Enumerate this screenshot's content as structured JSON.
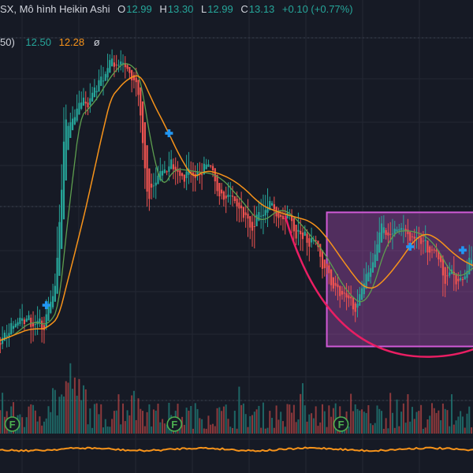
{
  "header": {
    "symbol_suffix": "SX, Mô hình Heikin Ashi",
    "open_key": "O",
    "open": "12.99",
    "high_key": "H",
    "high": "13.30",
    "low_key": "L",
    "low": "12.99",
    "close_key": "C",
    "close": "13.13",
    "change": "+0.10 (+0.77%)"
  },
  "ma_legend": {
    "params_suffix": "50)",
    "ma_fast": "12.50",
    "ma_slow": "12.28",
    "visibility_glyph": "ø"
  },
  "event_marker_label": "F",
  "colors": {
    "background": "#161a25",
    "up": "#26a69a",
    "down": "#ef5350",
    "ma_fast": "#5d9e4f",
    "ma_slow": "#f7931a",
    "pattern_box": "#d05ad6",
    "cup_curve": "#e91e63",
    "cross_marker": "#2196f3",
    "oscillator": "#f7931a"
  },
  "chart_data": {
    "type": "candlestick",
    "style": "Heikin Ashi",
    "grid": true,
    "price_range": [
      11.4,
      16.1
    ],
    "candle_count": 220,
    "key_points": [
      {
        "bar": 0,
        "price": 11.8
      },
      {
        "bar": 14,
        "price": 12.15
      },
      {
        "bar": 22,
        "price": 12.0
      },
      {
        "bar": 28,
        "price": 12.6
      },
      {
        "bar": 32,
        "price": 15.0
      },
      {
        "bar": 42,
        "price": 15.3
      },
      {
        "bar": 50,
        "price": 15.75
      },
      {
        "bar": 58,
        "price": 15.95
      },
      {
        "bar": 65,
        "price": 15.5
      },
      {
        "bar": 70,
        "price": 13.8
      },
      {
        "bar": 76,
        "price": 14.35
      },
      {
        "bar": 86,
        "price": 14.3
      },
      {
        "bar": 98,
        "price": 14.25
      },
      {
        "bar": 108,
        "price": 13.9
      },
      {
        "bar": 118,
        "price": 13.5
      },
      {
        "bar": 126,
        "price": 13.8
      },
      {
        "bar": 134,
        "price": 13.6
      },
      {
        "bar": 148,
        "price": 13.05
      },
      {
        "bar": 156,
        "price": 12.55
      },
      {
        "bar": 166,
        "price": 12.3
      },
      {
        "bar": 176,
        "price": 13.4
      },
      {
        "bar": 186,
        "price": 13.45
      },
      {
        "bar": 196,
        "price": 13.3
      },
      {
        "bar": 206,
        "price": 12.7
      },
      {
        "bar": 219,
        "price": 13.0
      }
    ],
    "ma_fast_last": 12.5,
    "ma_slow_last": 12.28,
    "cross_markers": [
      {
        "bar": 24,
        "price": 12.35
      },
      {
        "bar": 80,
        "price": 14.85
      },
      {
        "bar": 190,
        "price": 13.2
      },
      {
        "bar": 214,
        "price": 13.15
      }
    ],
    "pattern_box": {
      "bar_from": 152,
      "bar_to": 219,
      "price_top": 13.7,
      "price_bottom": 11.75
    },
    "cup_curve": {
      "bar_from": 133,
      "bar_bottom": 200,
      "price_start": 13.65,
      "price_bottom": 11.6
    },
    "event_markers_bars": [
      2,
      76,
      152,
      219
    ]
  }
}
